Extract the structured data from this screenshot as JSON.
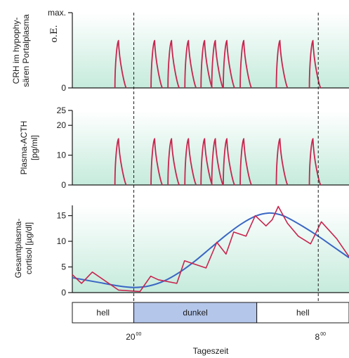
{
  "colors": {
    "panel_top": "#ffffff",
    "panel_bottom": "#c5ebdc",
    "pulse_line": "#c8244e",
    "trend_line": "#3a66c4",
    "axis": "#1a1a1a",
    "dark_phase": "#b4c6ea",
    "light_phase": "#ffffff"
  },
  "chart_data": [
    {
      "type": "line",
      "name": "crh",
      "ylabel": [
        "CRH im hypophy-",
        "sären Portalplasma"
      ],
      "unit_label": "o.E.",
      "y_ticks": [
        "max.",
        "0"
      ],
      "pulse_peak_times": [
        19.0,
        21.35,
        22.45,
        23.55,
        24.6,
        25.3,
        26.05,
        27.15,
        29.5,
        31.65
      ]
    },
    {
      "type": "line",
      "name": "acth",
      "ylabel": [
        "Plasma-ACTH",
        "[pg/ml]"
      ],
      "ylim": [
        0,
        25
      ],
      "y_ticks": [
        "25",
        "20",
        "10",
        "0"
      ],
      "y_tick_values": [
        25,
        20,
        10,
        0
      ],
      "pulse_peak_times": [
        19.0,
        21.35,
        22.45,
        23.55,
        24.6,
        25.3,
        26.05,
        27.15,
        29.5,
        31.65
      ],
      "pulse_peak_values": [
        15.5,
        15.5,
        15.5,
        15.5,
        15.5,
        15.5,
        15.5,
        15.5,
        15.5,
        15.5
      ]
    },
    {
      "type": "line",
      "name": "cortisol",
      "ylabel": [
        "Gesamtplasma-",
        "cortisol [µg/dl]"
      ],
      "ylim": [
        0,
        17
      ],
      "y_ticks": [
        "15",
        "10",
        "5",
        "0"
      ],
      "y_tick_values": [
        15,
        10,
        5,
        0
      ],
      "series": [
        {
          "role": "pulsatile",
          "x": [
            16.0,
            16.6,
            17.3,
            19.0,
            20.4,
            21.1,
            21.6,
            22.8,
            23.3,
            24.7,
            25.4,
            26.0,
            26.5,
            27.3,
            27.9,
            28.6,
            29.0,
            29.4,
            30.0,
            30.7,
            31.5,
            32.2,
            33.2,
            34.0
          ],
          "y": [
            3.5,
            1.8,
            4.0,
            0.5,
            0.2,
            3.2,
            2.5,
            1.8,
            6.2,
            4.8,
            9.8,
            7.5,
            11.8,
            11.0,
            15.0,
            13.0,
            14.2,
            16.8,
            13.5,
            11.0,
            9.5,
            13.8,
            10.5,
            7.0
          ]
        },
        {
          "role": "trend",
          "x": [
            16.0,
            17.5,
            19.0,
            20.0,
            21.0,
            22.0,
            23.0,
            24.0,
            25.0,
            26.0,
            27.0,
            28.0,
            28.8,
            29.5,
            30.0,
            31.0,
            32.0,
            33.0,
            34.0
          ],
          "y": [
            2.9,
            2.1,
            1.3,
            1.0,
            1.3,
            2.3,
            4.0,
            6.2,
            8.7,
            11.2,
            13.4,
            15.0,
            15.5,
            15.2,
            14.6,
            12.9,
            11.0,
            8.9,
            6.8
          ]
        }
      ]
    }
  ],
  "x_axis": {
    "range": [
      16,
      34
    ],
    "markers": [
      {
        "time": 20,
        "label": "20",
        "sup": "00"
      },
      {
        "time": 32,
        "label": "8",
        "sup": "00"
      }
    ],
    "label": "Tageszeit"
  },
  "phases": [
    {
      "label": "hell",
      "start": 16,
      "end": 20,
      "kind": "light"
    },
    {
      "label": "dunkel",
      "start": 20,
      "end": 28,
      "kind": "dark"
    },
    {
      "label": "hell",
      "start": 28,
      "end": 34,
      "kind": "light"
    }
  ]
}
